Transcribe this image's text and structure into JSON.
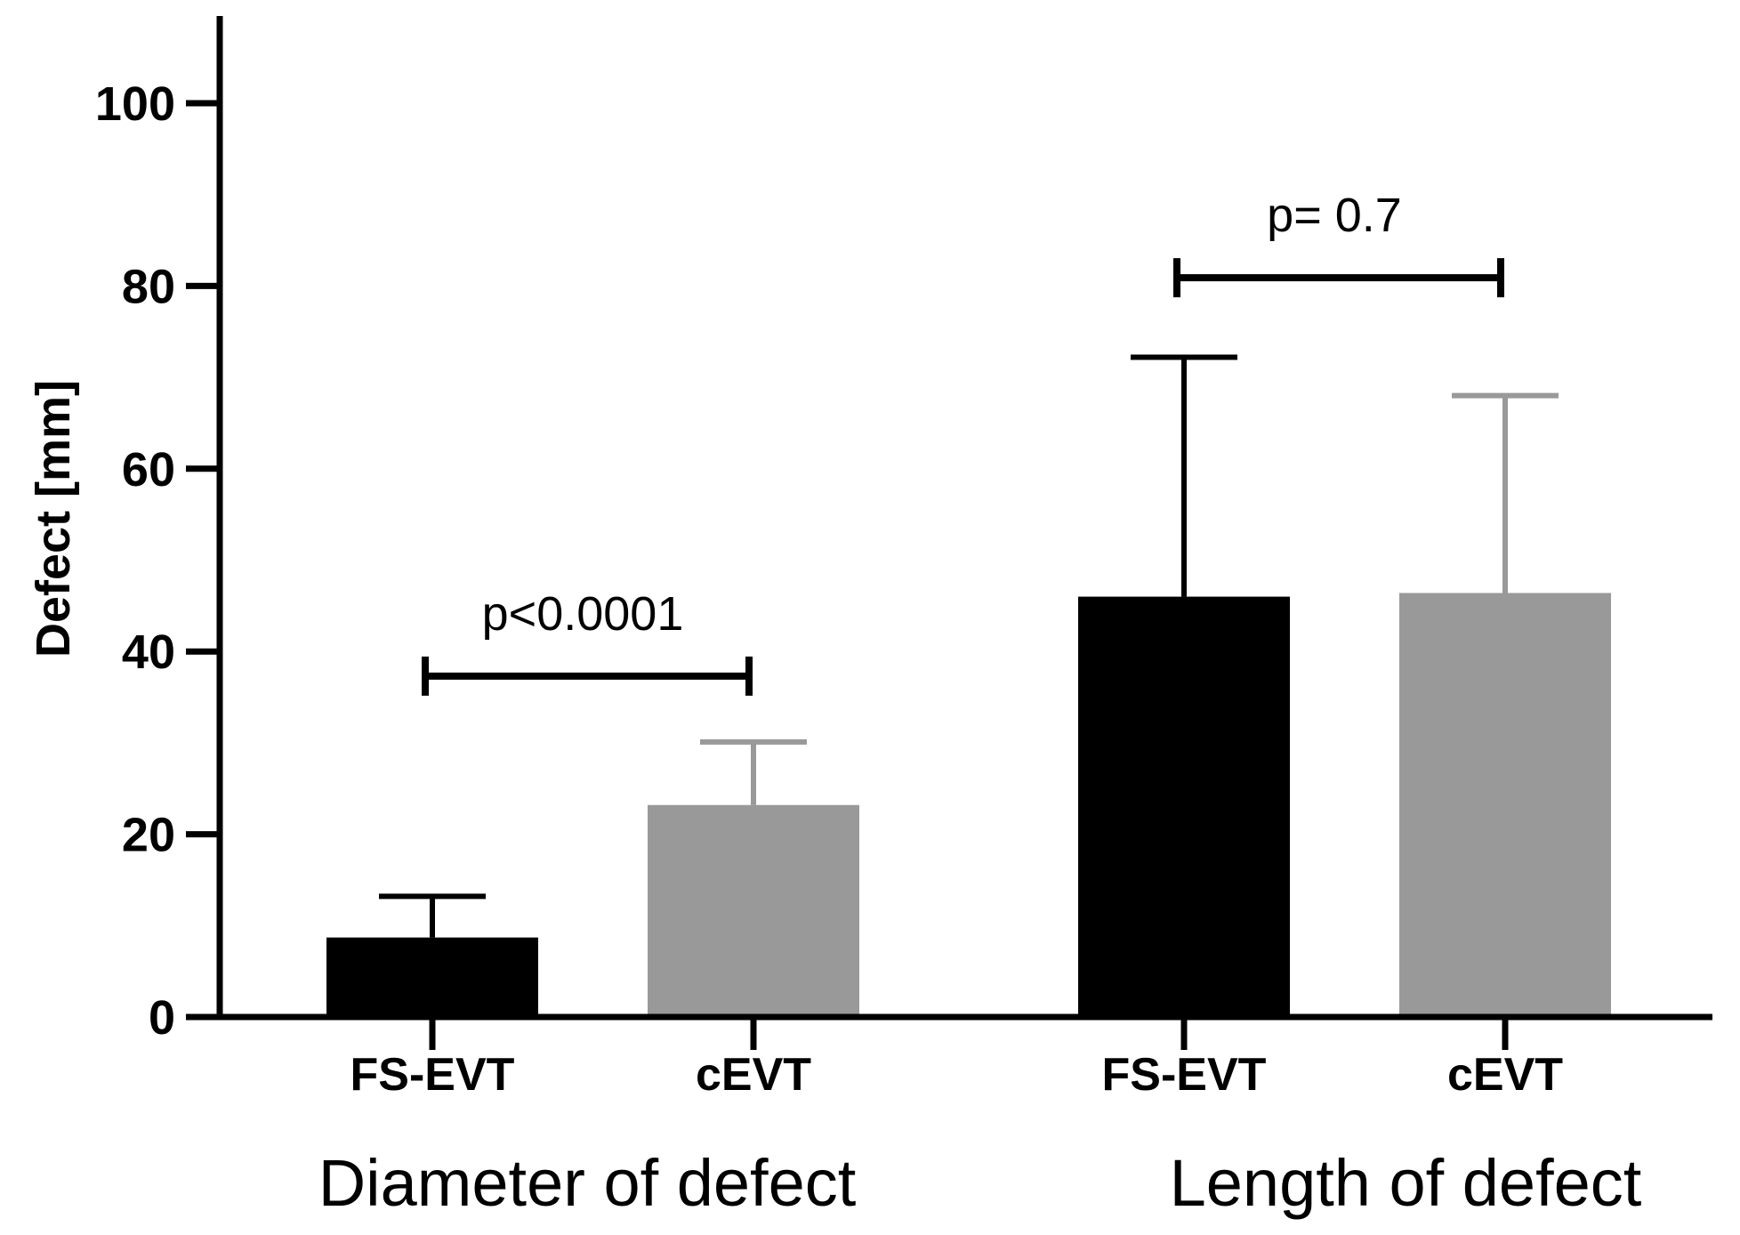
{
  "chart_data": {
    "type": "bar",
    "title": "",
    "xlabel": "",
    "ylabel": "Defect [mm]",
    "ylim": [
      0,
      110
    ],
    "yticks": [
      0,
      20,
      40,
      60,
      80,
      100
    ],
    "grid": false,
    "groups": [
      {
        "label": "Diameter of defect",
        "bars": [
          {
            "category": "FS-EVT",
            "value": 8.7,
            "error": 4.5,
            "color": "#000000"
          },
          {
            "category": "cEVT",
            "value": 23.2,
            "error": 6.9,
            "color": "#999999"
          }
        ],
        "comparison": {
          "text": "p<0.0001"
        }
      },
      {
        "label": "Length of defect",
        "bars": [
          {
            "category": "FS-EVT",
            "value": 46.0,
            "error": 26.2,
            "color": "#000000"
          },
          {
            "category": "cEVT",
            "value": 46.4,
            "error": 21.6,
            "color": "#999999"
          }
        ],
        "comparison": {
          "text": "p= 0.7"
        }
      }
    ]
  }
}
